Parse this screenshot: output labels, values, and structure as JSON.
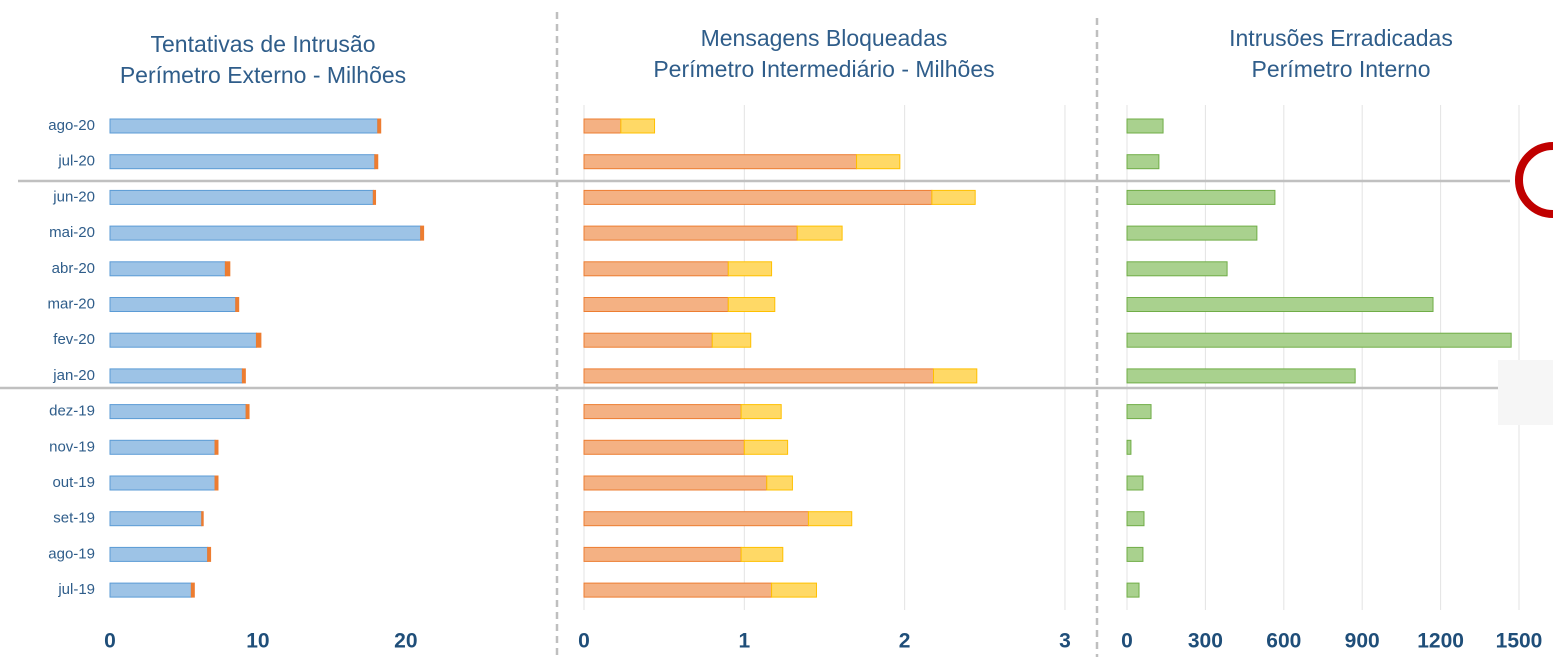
{
  "chart_data": [
    {
      "type": "bar",
      "orientation": "horizontal",
      "stacked": true,
      "grid": false,
      "title": "Tentativas de Intrusão",
      "subtitle": "Perímetro Externo - Milhões",
      "categories": [
        "ago-20",
        "jul-20",
        "jun-20",
        "mai-20",
        "abr-20",
        "mar-20",
        "fev-20",
        "jan-20",
        "dez-19",
        "nov-19",
        "out-19",
        "set-19",
        "ago-19",
        "jul-19"
      ],
      "xlim": [
        0,
        29
      ],
      "xticks": [
        0,
        10,
        20
      ],
      "series": [
        {
          "color": "#9dc3e6",
          "values": [
            18.1,
            17.9,
            17.8,
            21.0,
            7.8,
            8.5,
            9.9,
            8.95,
            9.2,
            7.1,
            7.1,
            6.2,
            6.6,
            5.5
          ]
        },
        {
          "color": "#ed7d31",
          "values": [
            0.2,
            0.2,
            0.15,
            0.2,
            0.3,
            0.2,
            0.3,
            0.2,
            0.2,
            0.2,
            0.2,
            0.1,
            0.2,
            0.2
          ]
        }
      ]
    },
    {
      "type": "bar",
      "orientation": "horizontal",
      "stacked": true,
      "grid": true,
      "title": "Mensagens Bloqueadas",
      "subtitle": "Perímetro Intermediário - Milhões",
      "xlim": [
        0,
        3.1
      ],
      "xticks": [
        0,
        1,
        2,
        3
      ],
      "series": [
        {
          "color": "#f4b183",
          "values": [
            0.23,
            1.7,
            2.17,
            1.33,
            0.9,
            0.9,
            0.8,
            2.18,
            0.98,
            1.0,
            1.14,
            1.4,
            0.98,
            1.17
          ]
        },
        {
          "color": "#ffd966",
          "values": [
            0.21,
            0.27,
            0.27,
            0.28,
            0.27,
            0.29,
            0.24,
            0.27,
            0.25,
            0.27,
            0.16,
            0.27,
            0.26,
            0.28
          ]
        }
      ]
    },
    {
      "type": "bar",
      "orientation": "horizontal",
      "stacked": true,
      "grid": true,
      "title": "Intrusões Erradicadas",
      "subtitle": "Perímetro Interno",
      "xlim": [
        0,
        1500
      ],
      "xticks": [
        0,
        300,
        600,
        900,
        1200,
        1500
      ],
      "series": [
        {
          "color": "#a9d18e",
          "values": [
            138,
            122,
            566,
            497,
            383,
            1171,
            1470,
            873,
            92,
            15,
            61,
            65,
            61,
            46
          ]
        }
      ]
    }
  ]
}
